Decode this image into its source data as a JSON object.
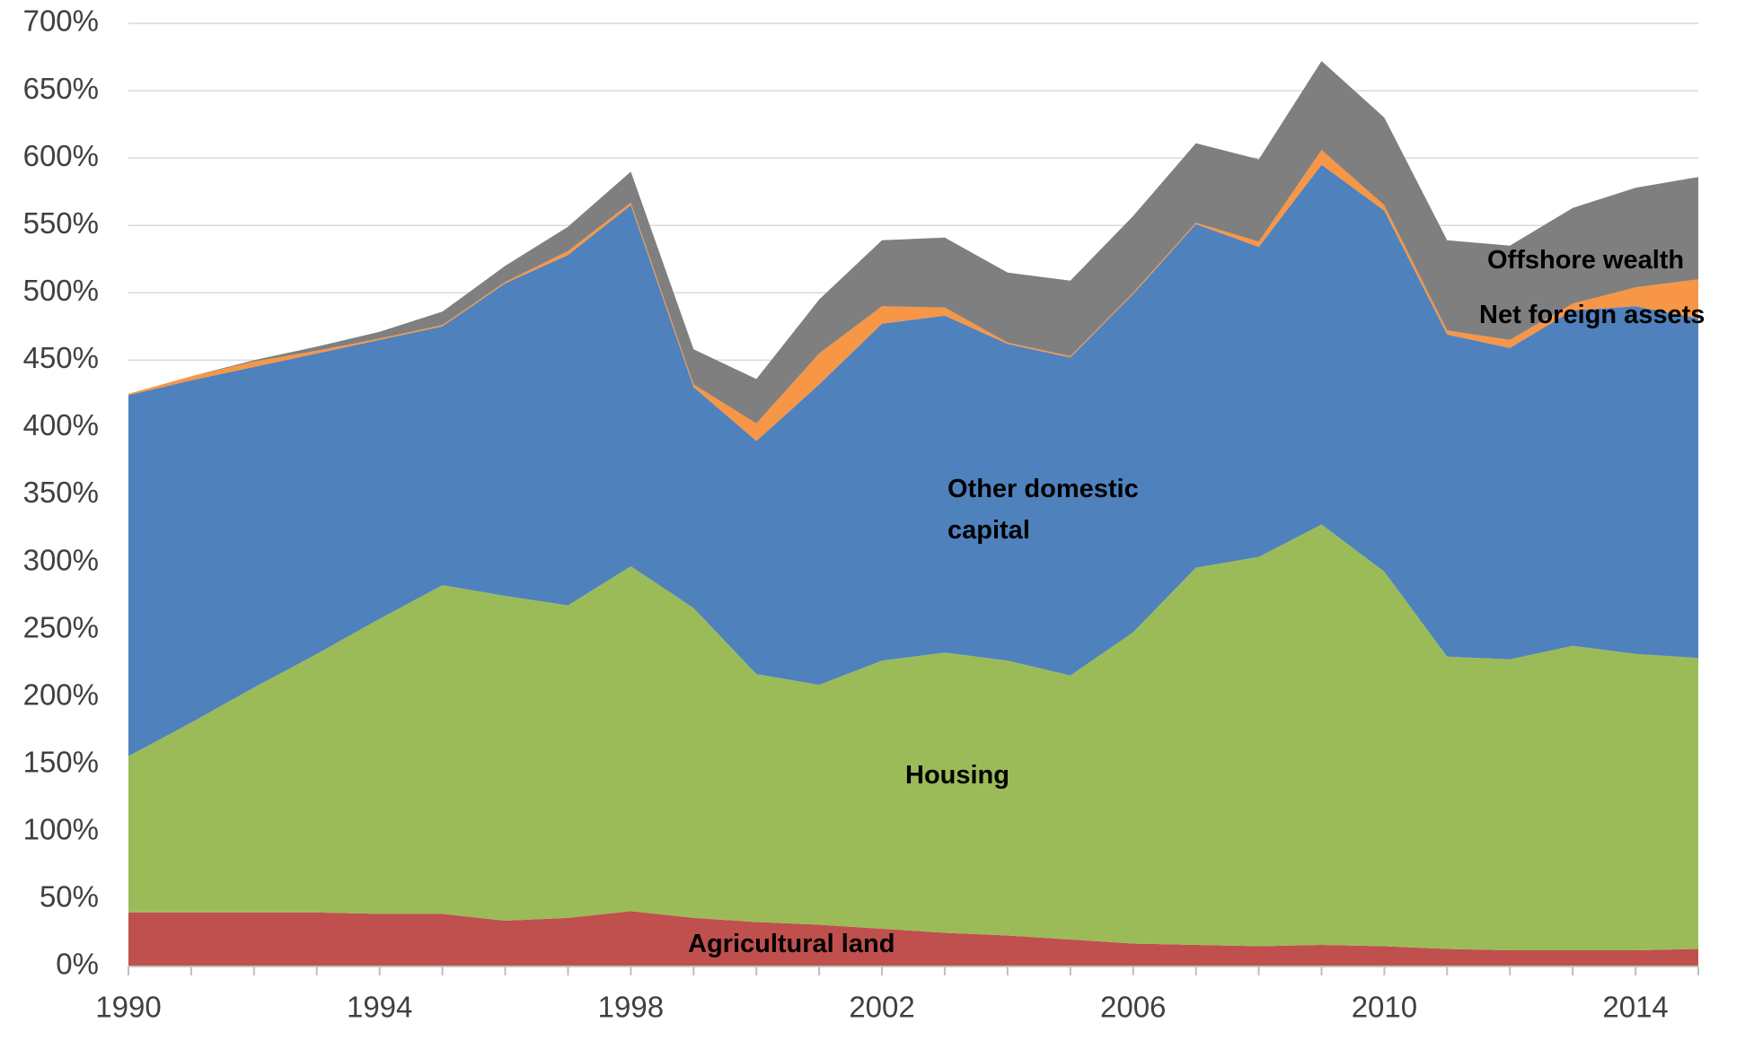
{
  "chart_data": {
    "type": "stacked_area",
    "x": [
      1990,
      1991,
      1992,
      1993,
      1994,
      1995,
      1996,
      1997,
      1998,
      1999,
      2000,
      2001,
      2002,
      2003,
      2004,
      2005,
      2006,
      2007,
      2008,
      2009,
      2010,
      2011,
      2012,
      2013,
      2014,
      2015
    ],
    "series": [
      {
        "name": "Agricultural land",
        "color": "#c0504d",
        "values": [
          40,
          40,
          40,
          40,
          39,
          39,
          34,
          36,
          41,
          36,
          33,
          31,
          28,
          25,
          23,
          20,
          17,
          16,
          15,
          16,
          15,
          13,
          12,
          12,
          12,
          13
        ]
      },
      {
        "name": "Housing",
        "color": "#9bbb59",
        "values": [
          116,
          141,
          167,
          192,
          219,
          244,
          241,
          232,
          256,
          230,
          184,
          178,
          199,
          208,
          204,
          196,
          231,
          280,
          289,
          312,
          278,
          217,
          216,
          226,
          220,
          216
        ]
      },
      {
        "name": "Other domestic capital",
        "color": "#4f81bd",
        "values": [
          268,
          254,
          238,
          223,
          207,
          192,
          232,
          260,
          268,
          164,
          173,
          223,
          250,
          250,
          235,
          236,
          251,
          255,
          230,
          267,
          268,
          239,
          231,
          249,
          258,
          252
        ]
      },
      {
        "name": "Net foreign assets",
        "color": "#f79646",
        "values": [
          1,
          3,
          4,
          2,
          1,
          1,
          1,
          3,
          2,
          2,
          13,
          23,
          13,
          6,
          1,
          1,
          1,
          1,
          4,
          11,
          4,
          3,
          6,
          5,
          14,
          29
        ]
      },
      {
        "name": "Offshore wealth",
        "color": "#7f7f7f",
        "values": [
          0,
          0,
          1,
          3,
          5,
          10,
          12,
          18,
          23,
          26,
          33,
          40,
          49,
          52,
          52,
          56,
          57,
          59,
          61,
          66,
          65,
          67,
          70,
          71,
          74,
          76
        ]
      }
    ],
    "xlim": [
      1990,
      2015
    ],
    "xticks": [
      1990,
      1994,
      1998,
      2002,
      2006,
      2010,
      2014
    ],
    "ylim": [
      0,
      700
    ],
    "yticks": [
      {
        "value": 0,
        "label": "0%"
      },
      {
        "value": 50,
        "label": "50%"
      },
      {
        "value": 100,
        "label": "100%"
      },
      {
        "value": 150,
        "label": "150%"
      },
      {
        "value": 200,
        "label": "200%"
      },
      {
        "value": 250,
        "label": "250%"
      },
      {
        "value": 300,
        "label": "300%"
      },
      {
        "value": 350,
        "label": "350%"
      },
      {
        "value": 400,
        "label": "400%"
      },
      {
        "value": 450,
        "label": "450%"
      },
      {
        "value": 500,
        "label": "500%"
      },
      {
        "value": 550,
        "label": "550%"
      },
      {
        "value": 600,
        "label": "600%"
      },
      {
        "value": 650,
        "label": "650%"
      },
      {
        "value": 700,
        "label": "700%"
      }
    ],
    "grid": true
  }
}
